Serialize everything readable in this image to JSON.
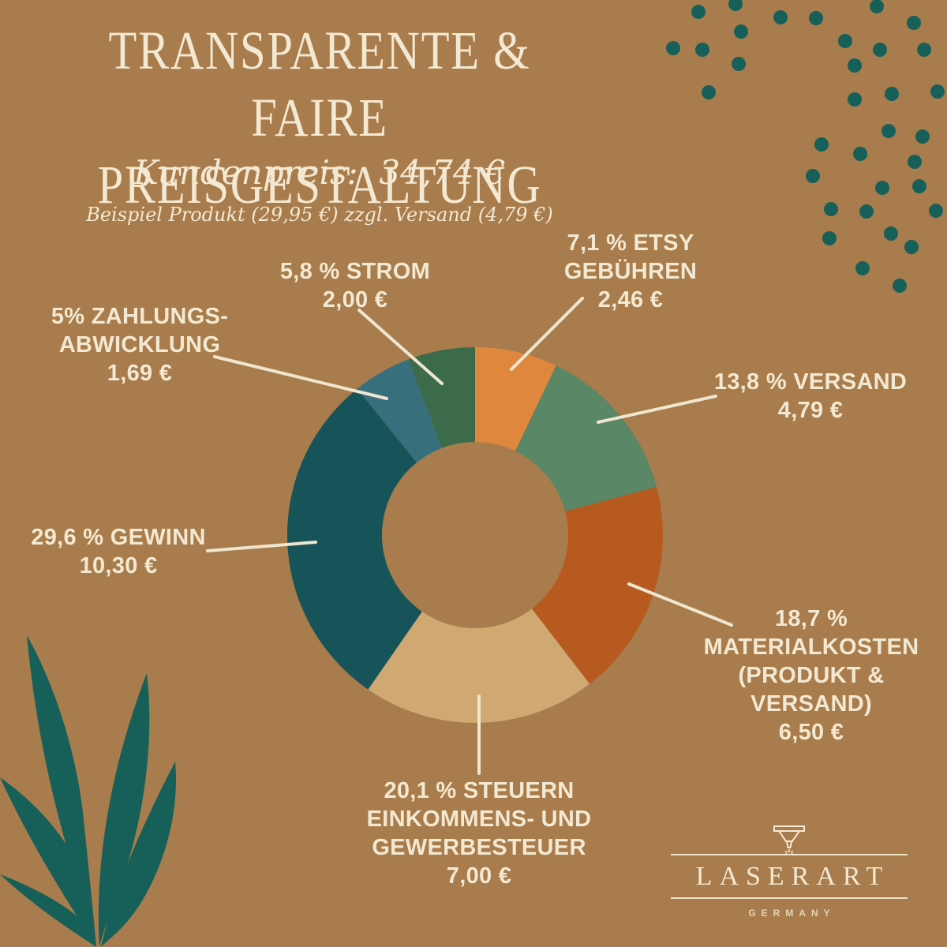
{
  "title": {
    "text": "TRANSPARENTE & FAIRE\nPREISGESTALTUNG"
  },
  "subtitle": {
    "customer_price": "Kundenpreis:  34,74 €",
    "example": "Beispiel Produkt (29,95 €) zzgl. Versand (4,79 €)"
  },
  "chart_data": {
    "type": "pie",
    "donut": true,
    "title": "Transparente & Faire Preisgestaltung",
    "total_label": "Kundenpreis: 34,74 €",
    "currency": "EUR",
    "start_angle_deg": 0,
    "clockwise": true,
    "legend_position": "callout-labels",
    "segments": [
      {
        "id": "etsy",
        "name": "Etsy Gebühren",
        "percent": 7.1,
        "value_eur": "2,46 €",
        "color": "#e0873e",
        "label": "7,1 % ETSY\nGEBÜHREN\n2,46 €"
      },
      {
        "id": "versand",
        "name": "Versand",
        "percent": 13.8,
        "value_eur": "4,79 €",
        "color": "#5a8765",
        "label": "13,8 % VERSAND\n4,79 €"
      },
      {
        "id": "materialkosten",
        "name": "Materialkosten (Produkt & Versand)",
        "percent": 18.7,
        "value_eur": "6,50 €",
        "color": "#b65a20",
        "label": "18,7 %\nMATERIALKOSTEN\n(PRODUKT &\nVERSAND)\n6,50 €"
      },
      {
        "id": "steuern",
        "name": "Steuern (Einkommens- und Gewerbesteuer)",
        "percent": 20.1,
        "value_eur": "7,00 €",
        "color": "#cfa971",
        "label": "20,1 % STEUERN\nEINKOMMENS- UND\nGEWERBESTEUER\n7,00 €"
      },
      {
        "id": "gewinn",
        "name": "Gewinn",
        "percent": 29.6,
        "value_eur": "10,30 €",
        "color": "#175459",
        "label": "29,6 % GEWINN\n10,30 €"
      },
      {
        "id": "zahlungsabwicklung",
        "name": "Zahlungsabwicklung",
        "percent": 5.0,
        "value_eur": "1,69 €",
        "color": "#37707c",
        "label": "5% ZAHLUNGS-\nABWICKLUNG\n1,69 €"
      },
      {
        "id": "strom",
        "name": "Strom",
        "percent": 5.8,
        "value_eur": "2,00 €",
        "color": "#3c6b4b",
        "label": "5,8 % STROM\n2,00 €"
      }
    ]
  },
  "logo": {
    "name": "LASERART",
    "country": "GERMANY"
  },
  "colors": {
    "background": "#a87c4c",
    "text_cream": "#f3e9d2",
    "callout_line": "#f0e6cf",
    "decor_teal": "#176059"
  }
}
